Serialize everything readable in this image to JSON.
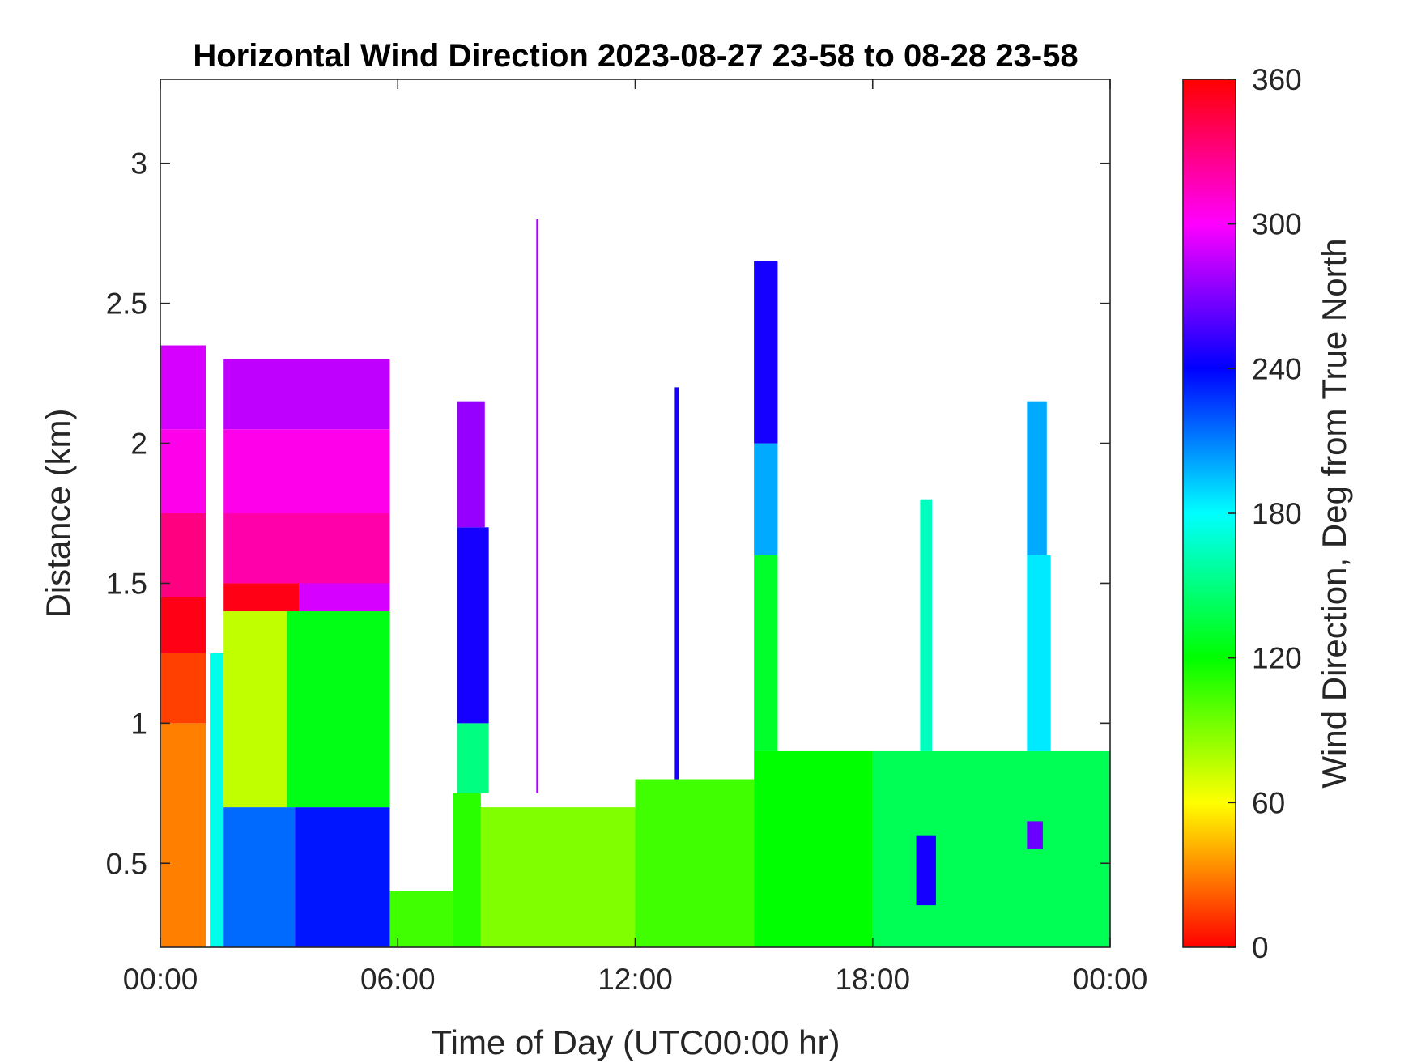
{
  "chart_data": {
    "type": "heatmap",
    "title": "Horizontal Wind Direction 2023-08-27 23-58 to 08-28 23-58",
    "xlabel": "Time of Day (UTC00:00 hr)",
    "ylabel": "Distance (km)",
    "xlim": [
      0,
      24
    ],
    "ylim": [
      0.2,
      3.3
    ],
    "x_ticks": [
      0,
      6,
      12,
      18,
      24
    ],
    "x_tick_labels": [
      "00:00",
      "06:00",
      "12:00",
      "18:00",
      "00:00"
    ],
    "y_ticks": [
      0.5,
      1,
      1.5,
      2,
      2.5,
      3
    ],
    "y_tick_labels": [
      "0.5",
      "1",
      "1.5",
      "2",
      "2.5",
      "3"
    ],
    "colorbar": {
      "label": "Wind Direction, Deg from True North",
      "range": [
        0,
        360
      ],
      "ticks": [
        0,
        60,
        120,
        180,
        240,
        300,
        360
      ],
      "tick_labels": [
        "0",
        "60",
        "120",
        "180",
        "240",
        "300",
        "360"
      ],
      "colormap": "hsv"
    },
    "x_unit": "hours UTC",
    "y_unit": "km",
    "value_unit": "degrees",
    "cells": [
      {
        "x": [
          0.0,
          1.15
        ],
        "y": [
          0.2,
          1.0
        ],
        "deg": 30
      },
      {
        "x": [
          0.0,
          1.15
        ],
        "y": [
          1.0,
          1.25
        ],
        "deg": 15
      },
      {
        "x": [
          0.0,
          1.15
        ],
        "y": [
          1.25,
          1.45
        ],
        "deg": 355
      },
      {
        "x": [
          0.0,
          1.15
        ],
        "y": [
          1.45,
          1.75
        ],
        "deg": 330
      },
      {
        "x": [
          0.0,
          1.15
        ],
        "y": [
          1.75,
          2.05
        ],
        "deg": 305
      },
      {
        "x": [
          0.0,
          1.15
        ],
        "y": [
          2.05,
          2.35
        ],
        "deg": 290
      },
      {
        "x": [
          1.25,
          1.6
        ],
        "y": [
          0.2,
          1.25
        ],
        "deg": 175
      },
      {
        "x": [
          1.6,
          3.4
        ],
        "y": [
          0.2,
          0.7
        ],
        "deg": 215
      },
      {
        "x": [
          3.4,
          5.8
        ],
        "y": [
          0.2,
          0.7
        ],
        "deg": 235
      },
      {
        "x": [
          1.6,
          3.2
        ],
        "y": [
          0.7,
          1.4
        ],
        "deg": 75
      },
      {
        "x": [
          3.2,
          5.8
        ],
        "y": [
          0.7,
          1.4
        ],
        "deg": 125
      },
      {
        "x": [
          1.6,
          3.5
        ],
        "y": [
          1.4,
          1.5
        ],
        "deg": 355
      },
      {
        "x": [
          3.5,
          5.8
        ],
        "y": [
          1.4,
          1.55
        ],
        "deg": 290
      },
      {
        "x": [
          1.6,
          5.8
        ],
        "y": [
          1.5,
          1.75
        ],
        "deg": 320
      },
      {
        "x": [
          1.6,
          5.8
        ],
        "y": [
          1.75,
          2.05
        ],
        "deg": 305
      },
      {
        "x": [
          1.6,
          5.8
        ],
        "y": [
          2.05,
          2.3
        ],
        "deg": 285
      },
      {
        "x": [
          5.8,
          7.4
        ],
        "y": [
          0.2,
          0.4
        ],
        "deg": 105
      },
      {
        "x": [
          7.4,
          8.1
        ],
        "y": [
          0.2,
          0.75
        ],
        "deg": 110
      },
      {
        "x": [
          7.5,
          8.3
        ],
        "y": [
          0.75,
          1.0
        ],
        "deg": 150
      },
      {
        "x": [
          7.5,
          8.3
        ],
        "y": [
          1.0,
          1.7
        ],
        "deg": 245
      },
      {
        "x": [
          7.5,
          8.2
        ],
        "y": [
          1.7,
          2.15
        ],
        "deg": 275
      },
      {
        "x": [
          8.1,
          12.0
        ],
        "y": [
          0.2,
          0.7
        ],
        "deg": 90
      },
      {
        "x": [
          9.5,
          9.55
        ],
        "y": [
          0.75,
          2.8
        ],
        "deg": 280
      },
      {
        "x": [
          12.0,
          15.0
        ],
        "y": [
          0.2,
          0.8
        ],
        "deg": 105
      },
      {
        "x": [
          13.0,
          13.1
        ],
        "y": [
          0.8,
          2.2
        ],
        "deg": 245
      },
      {
        "x": [
          15.0,
          18.0
        ],
        "y": [
          0.2,
          0.9
        ],
        "deg": 120
      },
      {
        "x": [
          15.0,
          15.6
        ],
        "y": [
          0.9,
          1.6
        ],
        "deg": 130
      },
      {
        "x": [
          15.0,
          15.6
        ],
        "y": [
          1.6,
          2.0
        ],
        "deg": 200
      },
      {
        "x": [
          15.0,
          15.6
        ],
        "y": [
          2.0,
          2.65
        ],
        "deg": 245
      },
      {
        "x": [
          18.0,
          24.0
        ],
        "y": [
          0.2,
          0.9
        ],
        "deg": 140
      },
      {
        "x": [
          19.2,
          19.5
        ],
        "y": [
          0.9,
          1.8
        ],
        "deg": 165
      },
      {
        "x": [
          21.9,
          22.5
        ],
        "y": [
          0.9,
          1.6
        ],
        "deg": 185
      },
      {
        "x": [
          21.9,
          22.4
        ],
        "y": [
          1.6,
          2.15
        ],
        "deg": 200
      },
      {
        "x": [
          19.1,
          19.6
        ],
        "y": [
          0.35,
          0.6
        ],
        "deg": 245
      },
      {
        "x": [
          21.9,
          22.3
        ],
        "y": [
          0.55,
          0.65
        ],
        "deg": 265
      }
    ]
  }
}
